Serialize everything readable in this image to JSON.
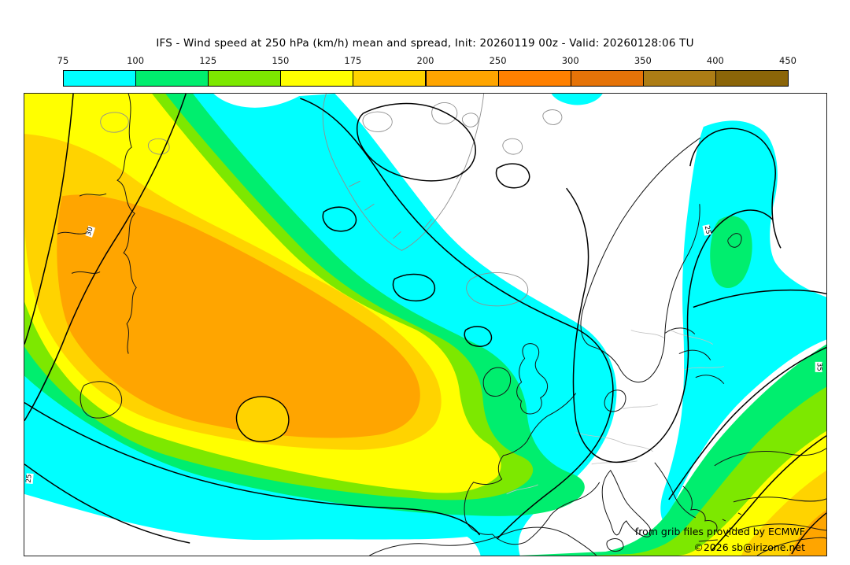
{
  "title": "IFS - Wind speed at 250 hPa (km/h) mean and spread, Init: 20260119 00z - Valid: 20260128:06 TU",
  "colorbar": {
    "ticks": [
      "75",
      "100",
      "125",
      "150",
      "175",
      "200",
      "250",
      "300",
      "350",
      "400",
      "450"
    ],
    "cells": [
      {
        "range": "75-100",
        "color": "#00ffff"
      },
      {
        "range": "100-125",
        "color": "#00ee6e"
      },
      {
        "range": "125-150",
        "color": "#7de800"
      },
      {
        "range": "150-175",
        "color": "#ffff00"
      },
      {
        "range": "175-200",
        "color": "#ffd300"
      },
      {
        "range": "200-250",
        "color": "#ffa500"
      },
      {
        "range": "250-300",
        "color": "#ff8000"
      },
      {
        "range": "300-350",
        "color": "#e57308"
      },
      {
        "range": "350-400",
        "color": "#ad7d15"
      },
      {
        "range": "400-450",
        "color": "#8b6508"
      }
    ]
  },
  "palette": {
    "c75": "#00ffff",
    "c100": "#00ee6e",
    "c125": "#7de800",
    "c150": "#ffff00",
    "c175": "#ffd300",
    "c200": "#ffa500",
    "c250": "#ff8000",
    "c300": "#e57308",
    "c350": "#ad7d15",
    "c400": "#8b6508",
    "land": "#ffffff"
  },
  "map": {
    "attribution1": "from grib files provided by ECMWF",
    "attribution2": "©2026 sb@irizone.net",
    "contour_labels": {
      "l1": "30",
      "l2": "25",
      "l3": "25",
      "l4": "35"
    }
  }
}
